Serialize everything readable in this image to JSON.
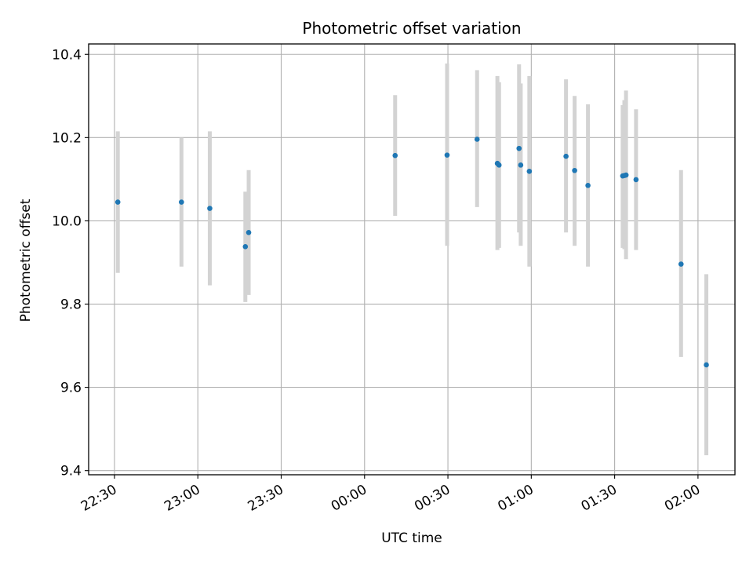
{
  "chart_data": {
    "type": "scatter",
    "title": "Photometric offset variation",
    "xlabel": "UTC time",
    "ylabel": "Photometric offset",
    "x_ticks": [
      "22:30",
      "23:00",
      "23:30",
      "00:00",
      "00:30",
      "01:00",
      "01:30",
      "02:00"
    ],
    "x_tick_values_min": [
      0,
      30,
      60,
      90,
      120,
      150,
      180,
      210
    ],
    "y_ticks": [
      "9.4",
      "9.6",
      "9.8",
      "10.0",
      "10.2",
      "10.4"
    ],
    "y_tick_values": [
      9.4,
      9.6,
      9.8,
      10.0,
      10.2,
      10.4
    ],
    "x_axis_origin": "22:30 UTC",
    "xlim": [
      -9.3,
      223.3
    ],
    "ylim": [
      9.39,
      10.425
    ],
    "grid": true,
    "marker_color": "#1f77b4",
    "errorbar_color": "#d3d3d3",
    "points": [
      {
        "x": 1.2,
        "y": 10.045,
        "ylo": 9.875,
        "yhi": 10.215
      },
      {
        "x": 24.1,
        "y": 10.045,
        "ylo": 9.89,
        "yhi": 10.2
      },
      {
        "x": 34.3,
        "y": 10.03,
        "ylo": 9.845,
        "yhi": 10.215
      },
      {
        "x": 47.1,
        "y": 9.938,
        "ylo": 9.805,
        "yhi": 10.07
      },
      {
        "x": 48.3,
        "y": 9.972,
        "ylo": 9.822,
        "yhi": 10.122
      },
      {
        "x": 101.0,
        "y": 10.157,
        "ylo": 10.012,
        "yhi": 10.302
      },
      {
        "x": 119.7,
        "y": 10.158,
        "ylo": 9.94,
        "yhi": 10.378
      },
      {
        "x": 130.5,
        "y": 10.196,
        "ylo": 10.033,
        "yhi": 10.362
      },
      {
        "x": 137.8,
        "y": 10.138,
        "ylo": 9.93,
        "yhi": 10.348
      },
      {
        "x": 138.4,
        "y": 10.134,
        "ylo": 9.935,
        "yhi": 10.333
      },
      {
        "x": 145.6,
        "y": 10.174,
        "ylo": 9.972,
        "yhi": 10.376
      },
      {
        "x": 146.2,
        "y": 10.134,
        "ylo": 9.94,
        "yhi": 10.33
      },
      {
        "x": 149.3,
        "y": 10.119,
        "ylo": 9.89,
        "yhi": 10.348
      },
      {
        "x": 162.5,
        "y": 10.155,
        "ylo": 9.972,
        "yhi": 10.34
      },
      {
        "x": 165.6,
        "y": 10.121,
        "ylo": 9.94,
        "yhi": 10.3
      },
      {
        "x": 170.4,
        "y": 10.085,
        "ylo": 9.89,
        "yhi": 10.28
      },
      {
        "x": 182.9,
        "y": 10.108,
        "ylo": 9.935,
        "yhi": 10.278
      },
      {
        "x": 183.5,
        "y": 10.109,
        "ylo": 9.932,
        "yhi": 10.29
      },
      {
        "x": 184.1,
        "y": 10.11,
        "ylo": 9.908,
        "yhi": 10.313
      },
      {
        "x": 187.7,
        "y": 10.099,
        "ylo": 9.93,
        "yhi": 10.268
      },
      {
        "x": 203.9,
        "y": 9.896,
        "ylo": 9.673,
        "yhi": 10.122
      },
      {
        "x": 213.0,
        "y": 9.654,
        "ylo": 9.437,
        "yhi": 9.872
      }
    ]
  }
}
